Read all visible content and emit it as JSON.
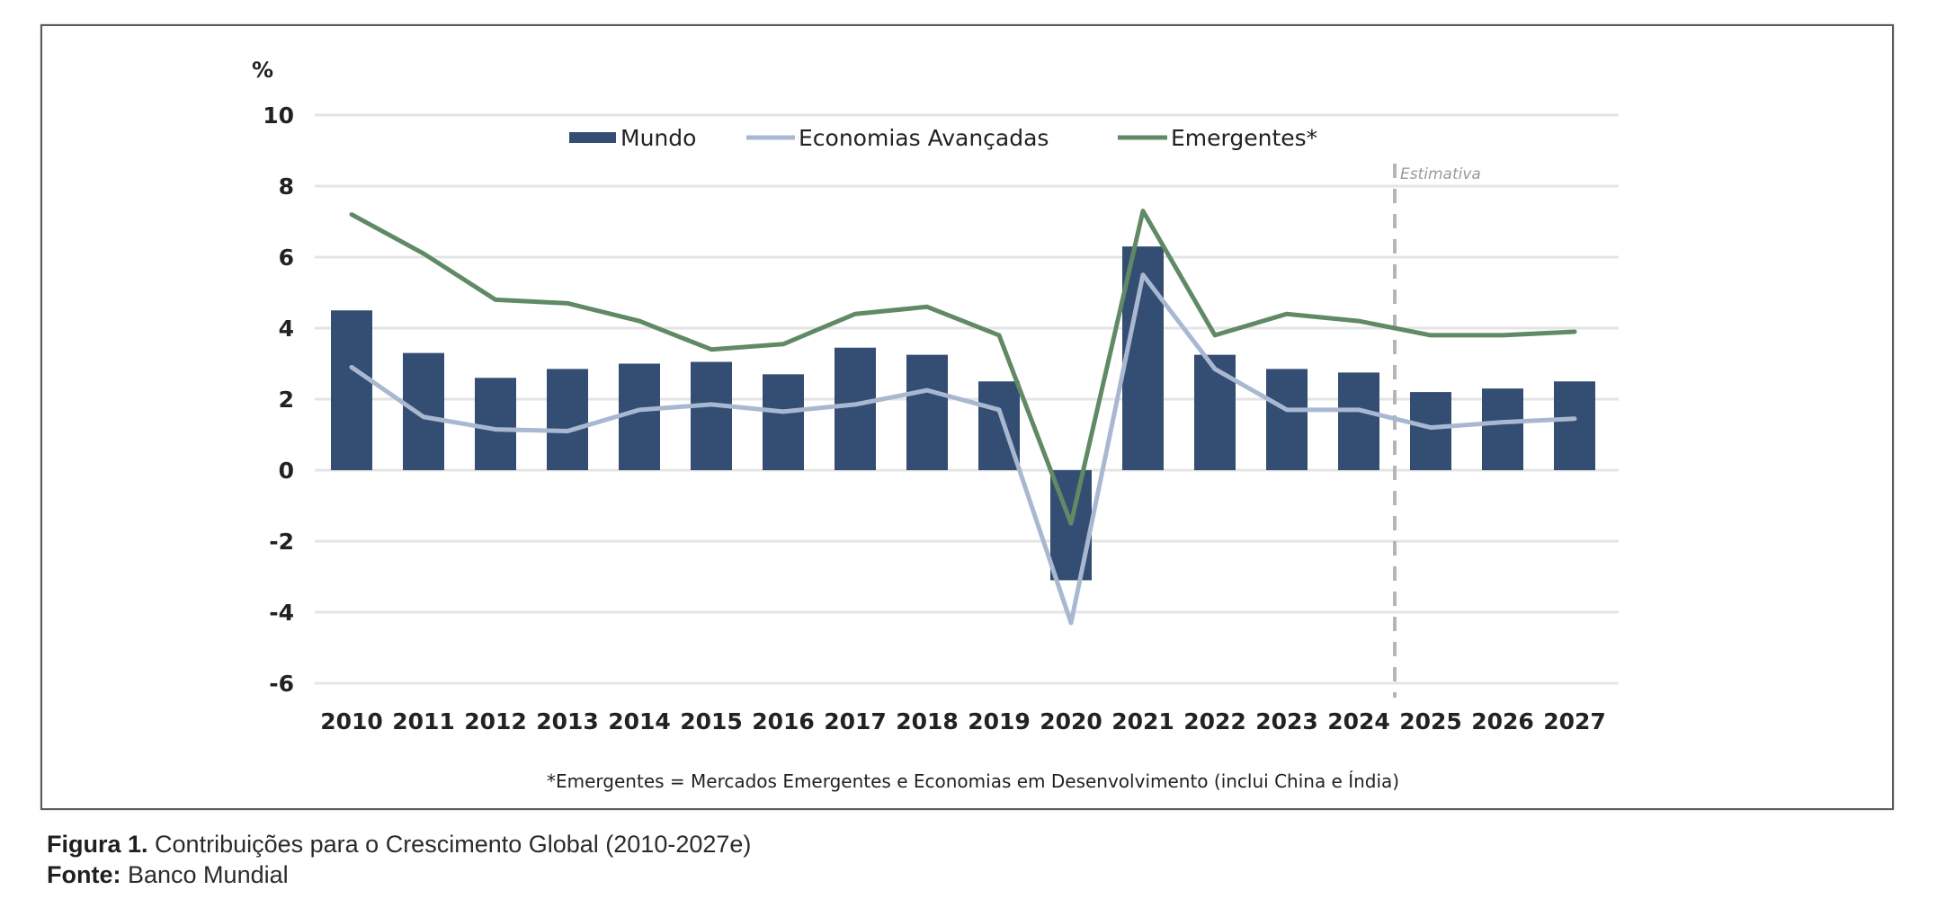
{
  "caption": {
    "figure_label": "Figura 1.",
    "figure_title": "Contribuições para o Crescimento Global (2010-2027e)",
    "source_label": "Fonte:",
    "source_value": "Banco Mundial"
  },
  "colors": {
    "mundo": "#344d72",
    "avancadas": "#a9b8d0",
    "emergentes": "#5f8a65",
    "grid": "#e4e4e4",
    "text": "#222222",
    "estimate_line": "#b5b5b5"
  },
  "chart_data": {
    "type": "bar",
    "title": "",
    "xlabel": "",
    "ylabel": "%",
    "ylim": [
      -6,
      10
    ],
    "yticks": [
      10,
      8,
      6,
      4,
      2,
      0,
      -2,
      -4,
      -6
    ],
    "grid": true,
    "legend_position": "top-center",
    "categories": [
      "2010",
      "2011",
      "2012",
      "2013",
      "2014",
      "2015",
      "2016",
      "2017",
      "2018",
      "2019",
      "2020",
      "2021",
      "2022",
      "2023",
      "2024",
      "2025",
      "2026",
      "2027"
    ],
    "series": [
      {
        "name": "Mundo",
        "type": "bar",
        "values": [
          4.5,
          3.3,
          2.6,
          2.85,
          3.0,
          3.05,
          2.7,
          3.45,
          3.25,
          2.5,
          -3.1,
          6.3,
          3.25,
          2.85,
          2.75,
          2.2,
          2.3,
          2.5
        ]
      },
      {
        "name": "Economias Avançadas",
        "type": "line",
        "values": [
          2.9,
          1.5,
          1.15,
          1.1,
          1.7,
          1.85,
          1.65,
          1.85,
          2.25,
          1.7,
          -4.3,
          5.5,
          2.85,
          1.7,
          1.7,
          1.2,
          1.35,
          1.45
        ]
      },
      {
        "name": "Emergentes*",
        "type": "line",
        "values": [
          7.2,
          6.1,
          4.8,
          4.7,
          4.2,
          3.4,
          3.55,
          4.4,
          4.6,
          3.8,
          -1.5,
          7.3,
          3.8,
          4.4,
          4.2,
          3.8,
          3.8,
          3.9
        ]
      }
    ],
    "annotations": [
      {
        "text": "Estimativa",
        "type": "vertical-dashed-line",
        "between": [
          "2024",
          "2025"
        ]
      }
    ],
    "footnote": "*Emergentes = Mercados Emergentes  e Economias em Desenvolvimento (inclui China e Índia)"
  }
}
